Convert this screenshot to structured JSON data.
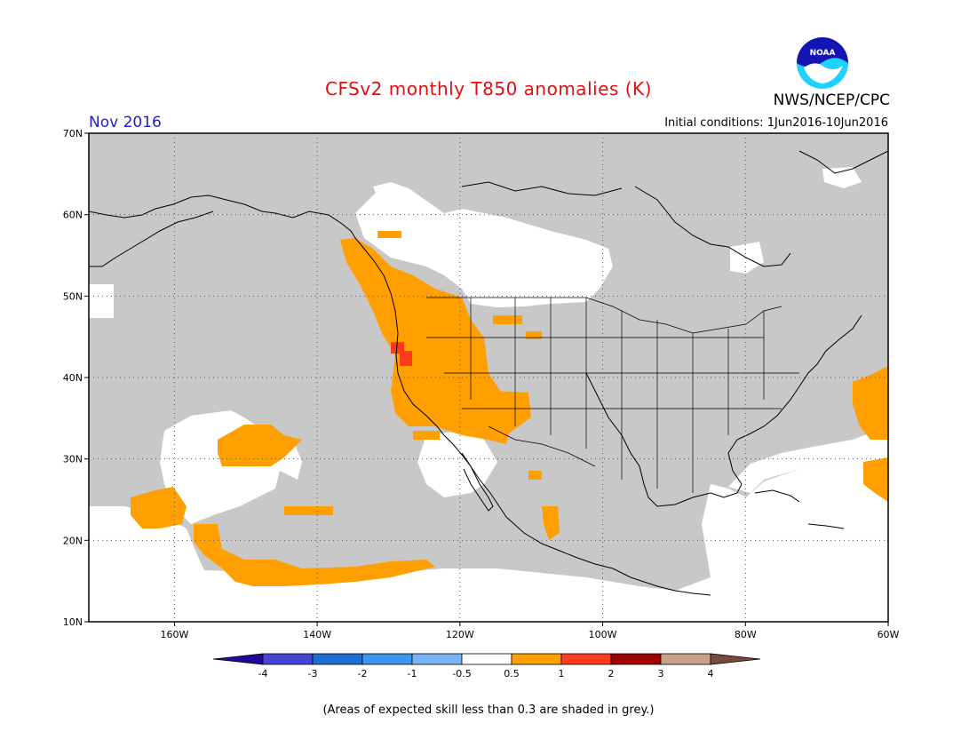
{
  "title": "CFSv2 monthly T850 anomalies (K)",
  "org": "NWS/NCEP/CPC",
  "logo_text": "NOAA",
  "month": "Nov 2016",
  "initial_conditions": "Initial conditions: 1Jun2016-10Jun2016",
  "footnote": "(Areas of expected skill less than 0.3 are shaded in grey.)",
  "map": {
    "lon_range": [
      -172,
      -60
    ],
    "lat_range": [
      10,
      70
    ],
    "lat_ticks": [
      {
        "value": 70,
        "label": "70N"
      },
      {
        "value": 60,
        "label": "60N"
      },
      {
        "value": 50,
        "label": "50N"
      },
      {
        "value": 40,
        "label": "40N"
      },
      {
        "value": 30,
        "label": "30N"
      },
      {
        "value": 20,
        "label": "20N"
      },
      {
        "value": 10,
        "label": "10N"
      }
    ],
    "lon_ticks": [
      {
        "value": -160,
        "label": "160W"
      },
      {
        "value": -140,
        "label": "140W"
      },
      {
        "value": -120,
        "label": "120W"
      },
      {
        "value": -100,
        "label": "100W"
      },
      {
        "value": -80,
        "label": "80W"
      },
      {
        "value": -60,
        "label": "60W"
      }
    ],
    "colors": {
      "land_grey": "#c8c8c8",
      "ocean_white": "#ffffff",
      "orange": "#ffa000",
      "red": "#ff3a1a",
      "coast": "#000000"
    }
  },
  "colorbar": {
    "bins": [
      {
        "color": "#1e0a96"
      },
      {
        "color": "#4646d2"
      },
      {
        "color": "#1e6ed2"
      },
      {
        "color": "#3c96f0"
      },
      {
        "color": "#78b4f5"
      },
      {
        "color": "#ffffff"
      },
      {
        "color": "#ffa000"
      },
      {
        "color": "#ff3c1e"
      },
      {
        "color": "#a00000"
      },
      {
        "color": "#c8a08c"
      },
      {
        "color": "#7a4a3a"
      }
    ],
    "tick_labels": [
      "-4",
      "-3",
      "-2",
      "-1",
      "-0.5",
      "0.5",
      "1",
      "2",
      "3",
      "4"
    ]
  }
}
